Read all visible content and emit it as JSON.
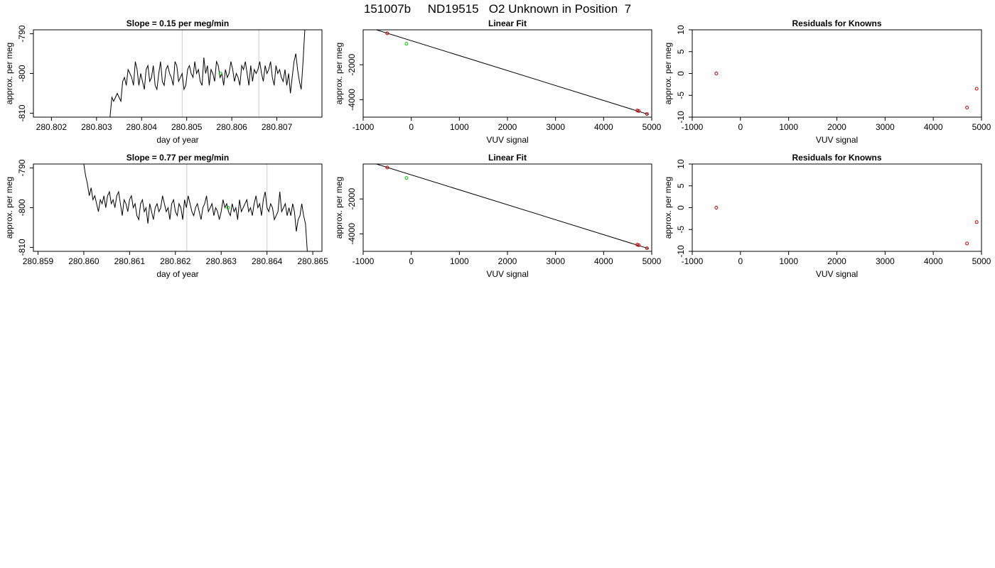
{
  "figure": {
    "title": "151007b     ND19515   O2 Unknown in Position  7"
  },
  "chart_data": [
    {
      "type": "line",
      "title": "Slope =  0.15  per meg/min",
      "xlabel": "day of year",
      "ylabel": "approx. per meg",
      "xlim": [
        280.8016,
        280.808
      ],
      "ylim": [
        -811,
        -789
      ],
      "xticks": [
        280.802,
        280.803,
        280.804,
        280.805,
        280.806,
        280.807
      ],
      "xtick_labels": [
        "280.802",
        "280.803",
        "280.804",
        "280.805",
        "280.806",
        "280.807"
      ],
      "yticks": [
        -810,
        -800,
        -790
      ],
      "ytick_labels": [
        "-810",
        "-800",
        "-790"
      ],
      "vlines": [
        280.8049,
        280.8066
      ],
      "vline_color": "#cccccc",
      "series_color": "#000000",
      "series_x_start": 280.8033,
      "series_x_end": 280.80763,
      "series": [
        {
          "x": [
            280.8033,
            280.80334,
            280.80338,
            280.80342,
            280.80346,
            280.8035,
            280.80354,
            280.80358,
            280.80362,
            280.80366,
            280.8037,
            280.80374,
            280.80378,
            280.80382,
            280.80386,
            280.8039,
            280.80394,
            280.80398,
            280.80402,
            280.80406,
            280.8041,
            280.80414,
            280.80418,
            280.80422,
            280.80426,
            280.8043,
            280.80434,
            280.80438,
            280.80442,
            280.80446,
            280.8045,
            280.80454,
            280.80458,
            280.80462,
            280.80466,
            280.8047,
            280.80474,
            280.80478,
            280.80482,
            280.80486,
            280.8049,
            280.80494,
            280.80498,
            280.80502,
            280.80506,
            280.8051,
            280.80514,
            280.80518,
            280.80522,
            280.80526,
            280.8053,
            280.80534,
            280.80538,
            280.80542,
            280.80546,
            280.8055,
            280.80554,
            280.80558,
            280.80562,
            280.80566,
            280.8057,
            280.80574,
            280.80578,
            280.80582,
            280.80586,
            280.8059,
            280.80594,
            280.80598,
            280.80602,
            280.80606,
            280.8061,
            280.80614,
            280.80618,
            280.80622,
            280.80626,
            280.8063,
            280.80634,
            280.80638,
            280.80642,
            280.80646,
            280.8065,
            280.80654,
            280.80658,
            280.80662,
            280.80666,
            280.8067,
            280.80674,
            280.80678,
            280.80682,
            280.80686,
            280.8069,
            280.80694,
            280.80698,
            280.80702,
            280.80706,
            280.8071,
            280.80714,
            280.80718,
            280.80722,
            280.80726,
            280.8073,
            280.80734,
            280.80738,
            280.80742,
            280.80746,
            280.8075,
            280.80754,
            280.80758,
            280.80762
          ],
          "y": [
            -811,
            -806,
            -807,
            -806,
            -805,
            -806,
            -807,
            -802,
            -801,
            -803,
            -799,
            -800,
            -801,
            -803,
            -797,
            -799,
            -803,
            -800,
            -802,
            -804,
            -799,
            -798,
            -802,
            -801,
            -798,
            -803,
            -804,
            -800,
            -797,
            -802,
            -803,
            -799,
            -798,
            -800,
            -801,
            -803,
            -797,
            -798,
            -802,
            -801,
            -800,
            -804,
            -803,
            -799,
            -798,
            -800,
            -801,
            -797,
            -800,
            -799,
            -802,
            -803,
            -796,
            -800,
            -798,
            -803,
            -799,
            -800,
            -802,
            -797,
            -798,
            -801,
            -800,
            -803,
            -799,
            -801,
            -800,
            -797,
            -799,
            -802,
            -800,
            -801,
            -803,
            -798,
            -799,
            -797,
            -800,
            -803,
            -798,
            -802,
            -799,
            -800,
            -799,
            -797,
            -800,
            -802,
            -798,
            -800,
            -799,
            -797,
            -801,
            -803,
            -798,
            -800,
            -799,
            -801,
            -802,
            -799,
            -803,
            -800,
            -805,
            -801,
            -797,
            -795,
            -799,
            -802,
            -804,
            -797,
            -789
          ]
        }
      ],
      "marker": {
        "x": 280.80575,
        "y": -800,
        "color": "#00cc00"
      }
    },
    {
      "type": "scatter",
      "title": "Linear Fit",
      "xlabel": "VUV signal",
      "ylabel": "approx. per meg",
      "xlim": [
        -1000,
        5000
      ],
      "ylim": [
        -5000,
        0
      ],
      "xticks": [
        -1000,
        0,
        1000,
        2000,
        3000,
        4000,
        5000
      ],
      "xtick_labels": [
        "-1000",
        "0",
        "1000",
        "2000",
        "3000",
        "4000",
        "5000"
      ],
      "yticks": [
        -4000,
        -2000
      ],
      "ytick_labels": [
        "-4000",
        "-2000"
      ],
      "fit_line": {
        "x": [
          -820,
          4940
        ],
        "y": [
          80,
          -4850
        ]
      },
      "points": [
        {
          "x": -500,
          "y": -200,
          "color": "#cc0000"
        },
        {
          "x": 4700,
          "y": -4620,
          "color": "#cc0000"
        },
        {
          "x": 4730,
          "y": -4650,
          "color": "#cc0000"
        },
        {
          "x": 4900,
          "y": -4820,
          "color": "#cc0000"
        },
        {
          "x": -100,
          "y": -800,
          "color": "#00cc00"
        }
      ]
    },
    {
      "type": "scatter",
      "title": "Residuals for Knowns",
      "xlabel": "VUV signal",
      "ylabel": "approx. per meg",
      "xlim": [
        -1000,
        5000
      ],
      "ylim": [
        -10,
        10
      ],
      "xticks": [
        -1000,
        0,
        1000,
        2000,
        3000,
        4000,
        5000
      ],
      "xtick_labels": [
        "-1000",
        "0",
        "1000",
        "2000",
        "3000",
        "4000",
        "5000"
      ],
      "yticks": [
        -10,
        -5,
        0,
        5,
        10
      ],
      "ytick_labels": [
        "-10",
        "-5",
        "0",
        "5",
        "10"
      ],
      "points": [
        {
          "x": -500,
          "y": 0,
          "color": "#cc0000"
        },
        {
          "x": 4700,
          "y": -7.8,
          "color": "#cc0000"
        },
        {
          "x": 4900,
          "y": -3.5,
          "color": "#cc0000"
        }
      ]
    },
    {
      "type": "line",
      "title": "Slope =  0.77  per meg/min",
      "xlabel": "day of year",
      "ylabel": "approx. per meg",
      "xlim": [
        280.8589,
        280.8652
      ],
      "ylim": [
        -811,
        -789
      ],
      "xticks": [
        280.859,
        280.86,
        280.861,
        280.862,
        280.863,
        280.864,
        280.865
      ],
      "xtick_labels": [
        "280.859",
        "280.860",
        "280.861",
        "280.862",
        "280.863",
        "280.864",
        "280.865"
      ],
      "yticks": [
        -810,
        -800,
        -790
      ],
      "ytick_labels": [
        "-810",
        "-800",
        "-790"
      ],
      "vlines": [
        280.86225,
        280.864
      ],
      "vline_color": "#cccccc",
      "series_color": "#000000",
      "series_x_start": 280.86,
      "series_x_end": 280.86486,
      "series": [
        {
          "x": [
            280.86,
            280.86004,
            280.86008,
            280.86012,
            280.86016,
            280.8602,
            280.86024,
            280.86028,
            280.86032,
            280.86036,
            280.8604,
            280.86044,
            280.86048,
            280.86052,
            280.86056,
            280.8606,
            280.86064,
            280.86068,
            280.86072,
            280.86076,
            280.8608,
            280.86084,
            280.86088,
            280.86092,
            280.86096,
            280.861,
            280.86104,
            280.86108,
            280.86112,
            280.86116,
            280.8612,
            280.86124,
            280.86128,
            280.86132,
            280.86136,
            280.8614,
            280.86144,
            280.86148,
            280.86152,
            280.86156,
            280.8616,
            280.86164,
            280.86168,
            280.86172,
            280.86176,
            280.8618,
            280.86184,
            280.86188,
            280.86192,
            280.86196,
            280.862,
            280.86204,
            280.86208,
            280.86212,
            280.86216,
            280.8622,
            280.86224,
            280.86228,
            280.86232,
            280.86236,
            280.8624,
            280.86244,
            280.86248,
            280.86252,
            280.86256,
            280.8626,
            280.86264,
            280.86268,
            280.86272,
            280.86276,
            280.8628,
            280.86284,
            280.86288,
            280.86292,
            280.86296,
            280.863,
            280.86304,
            280.86308,
            280.86312,
            280.86316,
            280.8632,
            280.86324,
            280.86328,
            280.86332,
            280.86336,
            280.8634,
            280.86344,
            280.86348,
            280.86352,
            280.86356,
            280.8636,
            280.86364,
            280.86368,
            280.86372,
            280.86376,
            280.8638,
            280.86384,
            280.86388,
            280.86392,
            280.86396,
            280.864,
            280.86404,
            280.86408,
            280.86412,
            280.86416,
            280.8642,
            280.86424,
            280.86428,
            280.86432,
            280.86436,
            280.8644,
            280.86444,
            280.86448,
            280.86452,
            280.86456,
            280.8646,
            280.86464,
            280.86468,
            280.86472,
            280.86476,
            280.8648,
            280.86484,
            280.86488
          ],
          "y": [
            -789,
            -792,
            -794,
            -797,
            -795,
            -798,
            -797,
            -799,
            -801,
            -798,
            -799,
            -797,
            -800,
            -797,
            -796,
            -799,
            -798,
            -800,
            -797,
            -796,
            -799,
            -802,
            -798,
            -799,
            -801,
            -798,
            -797,
            -800,
            -799,
            -802,
            -803,
            -799,
            -798,
            -801,
            -800,
            -804,
            -799,
            -801,
            -803,
            -800,
            -799,
            -801,
            -800,
            -797,
            -799,
            -801,
            -800,
            -803,
            -799,
            -798,
            -801,
            -802,
            -799,
            -800,
            -803,
            -798,
            -800,
            -797,
            -799,
            -801,
            -802,
            -800,
            -799,
            -801,
            -803,
            -800,
            -799,
            -797,
            -801,
            -800,
            -799,
            -802,
            -800,
            -801,
            -803,
            -801,
            -798,
            -800,
            -799,
            -801,
            -802,
            -799,
            -801,
            -800,
            -803,
            -798,
            -801,
            -800,
            -799,
            -798,
            -801,
            -800,
            -802,
            -799,
            -797,
            -800,
            -799,
            -802,
            -798,
            -796,
            -800,
            -801,
            -799,
            -800,
            -803,
            -802,
            -801,
            -796,
            -801,
            -800,
            -799,
            -802,
            -800,
            -802,
            -799,
            -801,
            -806,
            -803,
            -802,
            -799,
            -802,
            -804,
            -811
          ]
        }
      ],
      "marker": {
        "x": 280.86315,
        "y": -800,
        "color": "#00cc00"
      }
    },
    {
      "type": "scatter",
      "title": "Linear Fit",
      "xlabel": "VUV signal",
      "ylabel": "approx. per meg",
      "xlim": [
        -1000,
        5000
      ],
      "ylim": [
        -5000,
        0
      ],
      "xticks": [
        -1000,
        0,
        1000,
        2000,
        3000,
        4000,
        5000
      ],
      "xtick_labels": [
        "-1000",
        "0",
        "1000",
        "2000",
        "3000",
        "4000",
        "5000"
      ],
      "yticks": [
        -4000,
        -2000
      ],
      "ytick_labels": [
        "-4000",
        "-2000"
      ],
      "fit_line": {
        "x": [
          -820,
          4940
        ],
        "y": [
          80,
          -4850
        ]
      },
      "points": [
        {
          "x": -500,
          "y": -200,
          "color": "#cc0000"
        },
        {
          "x": 4700,
          "y": -4620,
          "color": "#cc0000"
        },
        {
          "x": 4730,
          "y": -4650,
          "color": "#cc0000"
        },
        {
          "x": 4900,
          "y": -4820,
          "color": "#cc0000"
        },
        {
          "x": -100,
          "y": -800,
          "color": "#00cc00"
        }
      ]
    },
    {
      "type": "scatter",
      "title": "Residuals for Knowns",
      "xlabel": "VUV signal",
      "ylabel": "approx. per meg",
      "xlim": [
        -1000,
        5000
      ],
      "ylim": [
        -10,
        10
      ],
      "xticks": [
        -1000,
        0,
        1000,
        2000,
        3000,
        4000,
        5000
      ],
      "xtick_labels": [
        "-1000",
        "0",
        "1000",
        "2000",
        "3000",
        "4000",
        "5000"
      ],
      "yticks": [
        -10,
        -5,
        0,
        5,
        10
      ],
      "ytick_labels": [
        "-10",
        "-5",
        "0",
        "5",
        "10"
      ],
      "points": [
        {
          "x": -500,
          "y": 0,
          "color": "#cc0000"
        },
        {
          "x": 4700,
          "y": -8.2,
          "color": "#cc0000"
        },
        {
          "x": 4900,
          "y": -3.3,
          "color": "#cc0000"
        }
      ]
    }
  ]
}
